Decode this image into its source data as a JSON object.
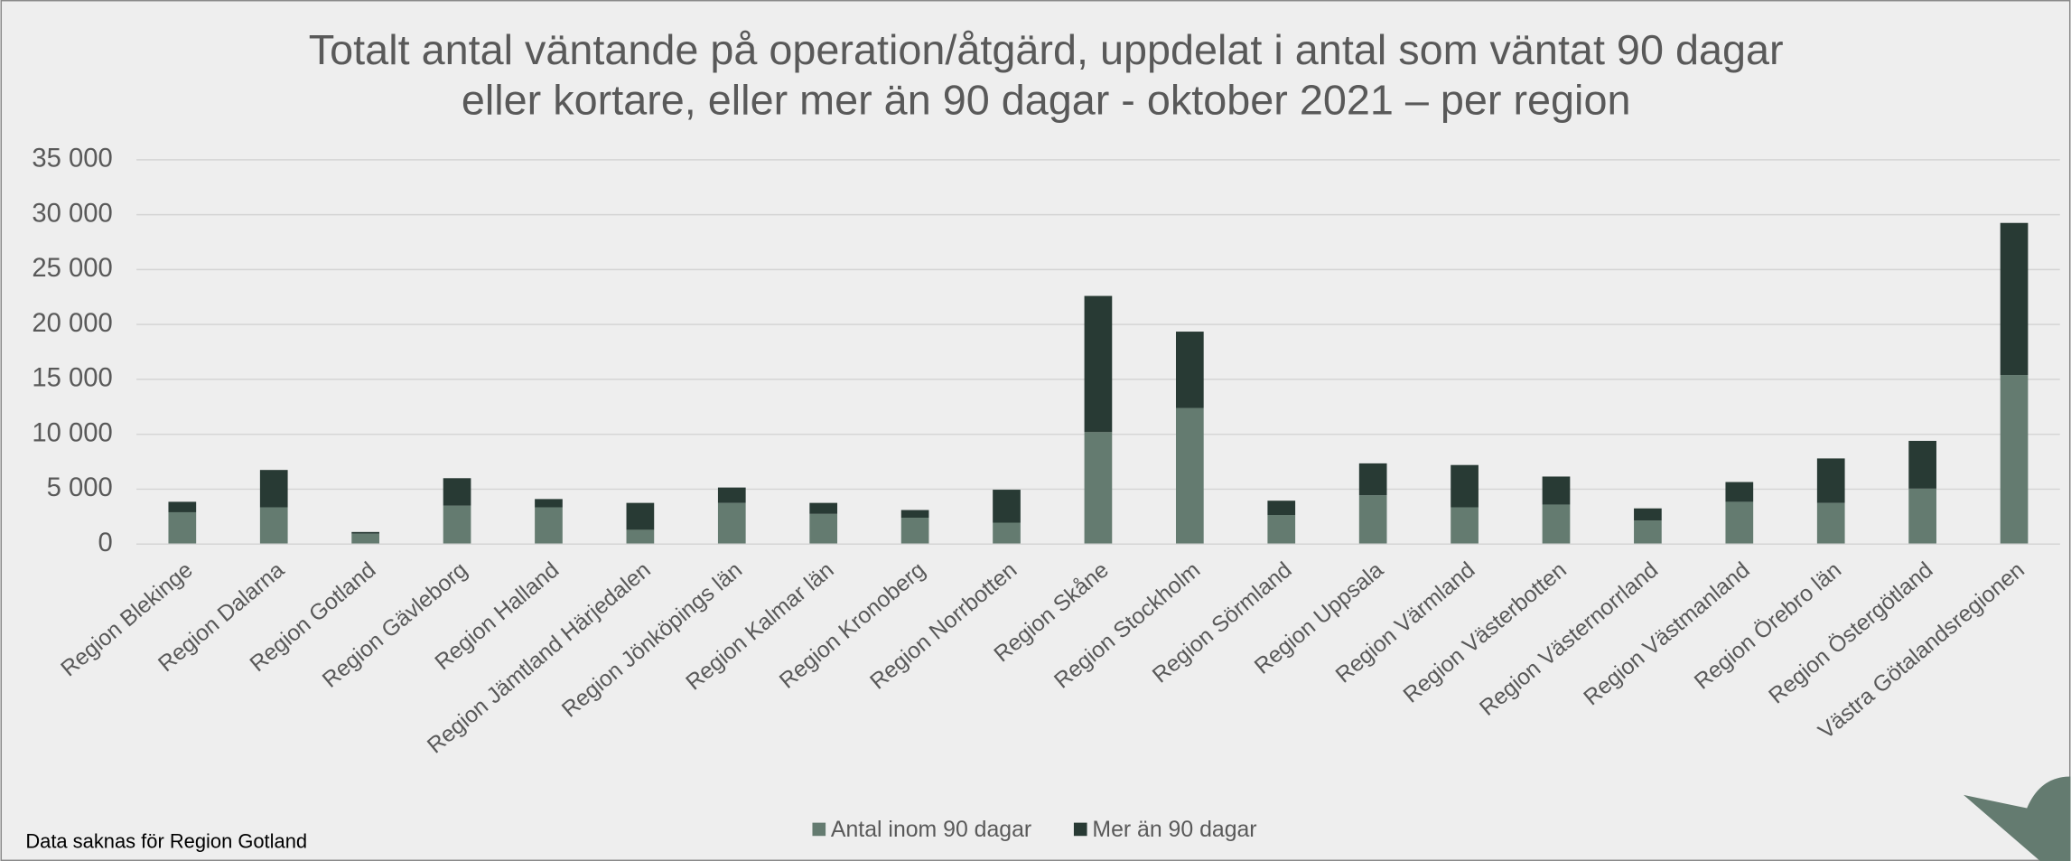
{
  "chart_data": {
    "type": "stacked_bar",
    "title_lines": [
      "Totalt antal väntande på operation/åtgärd, uppdelat i antal som väntat 90 dagar",
      "eller kortare, eller mer än 90 dagar - oktober 2021 – per region"
    ],
    "categories": [
      "Region Blekinge",
      "Region Dalarna",
      "Region Gotland",
      "Region Gävleborg",
      "Region Halland",
      "Region Jämtland Härjedalen",
      "Region Jönköpings län",
      "Region Kalmar län",
      "Region Kronoberg",
      "Region Norrbotten",
      "Region Skåne",
      "Region Stockholm",
      "Region Sörmland",
      "Region Uppsala",
      "Region Värmland",
      "Region Västerbotten",
      "Region Västernorrland",
      "Region Västmanland",
      "Region Örebro län",
      "Region Östergötland",
      "Västra Götalandsregionen"
    ],
    "series": [
      {
        "name": "Antal inom 90 dagar",
        "color": "#647b70",
        "values": [
          2900,
          3350,
          950,
          3500,
          3350,
          1300,
          3750,
          2750,
          2400,
          1950,
          10200,
          12400,
          2650,
          4450,
          3350,
          3600,
          2150,
          3850,
          3750,
          5050,
          15400
        ]
      },
      {
        "name": "Mer än 90 dagar",
        "color": "#283a34",
        "values": [
          950,
          3400,
          150,
          2500,
          750,
          2450,
          1400,
          1000,
          700,
          3000,
          12400,
          6950,
          1300,
          2900,
          3850,
          2550,
          1100,
          1800,
          4050,
          4350,
          13850
        ]
      }
    ],
    "ylim": [
      0,
      35000
    ],
    "yticks": [
      0,
      {
        "value": 5000,
        "label": "5 000"
      },
      {
        "value": 10000,
        "label": "10 000"
      },
      {
        "value": 15000,
        "label": "15 000"
      },
      {
        "value": 20000,
        "label": "20 000"
      },
      {
        "value": 25000,
        "label": "25 000"
      },
      {
        "value": 30000,
        "label": "30 000"
      },
      {
        "value": 35000,
        "label": "35 000"
      }
    ],
    "grid": true,
    "legend": "bottom",
    "footnote": "Data saknas för Region Gotland"
  }
}
